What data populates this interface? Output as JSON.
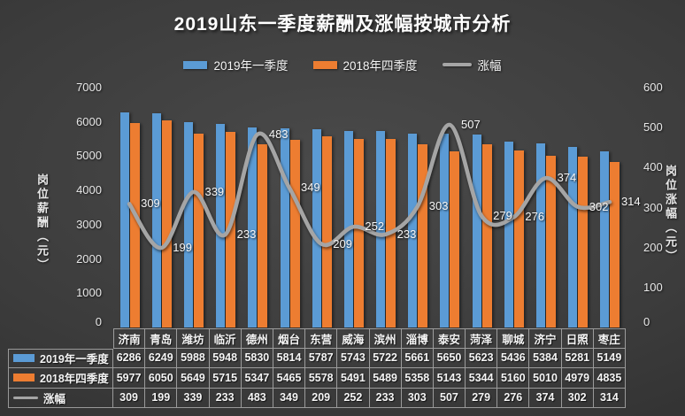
{
  "chart_data": {
    "type": "combo",
    "title": "2019山东一季度薪酬及涨幅按城市分析",
    "categories": [
      "济南",
      "青岛",
      "潍坊",
      "临沂",
      "德州",
      "烟台",
      "东营",
      "威海",
      "滨州",
      "淄博",
      "泰安",
      "菏泽",
      "聊城",
      "济宁",
      "日照",
      "枣庄"
    ],
    "series": [
      {
        "name": "2019年一季度",
        "type": "bar",
        "axis": "left",
        "color": "#5B9BD5",
        "values": [
          6286,
          6249,
          5988,
          5948,
          5830,
          5814,
          5787,
          5743,
          5722,
          5661,
          5650,
          5623,
          5436,
          5384,
          5281,
          5149
        ]
      },
      {
        "name": "2018年四季度",
        "type": "bar",
        "axis": "left",
        "color": "#ED7D31",
        "values": [
          5977,
          6050,
          5649,
          5715,
          5347,
          5465,
          5578,
          5491,
          5489,
          5358,
          5143,
          5344,
          5160,
          5010,
          4979,
          4835
        ]
      },
      {
        "name": "涨幅",
        "type": "line",
        "axis": "right",
        "color": "#A5A5A5",
        "values": [
          309,
          199,
          339,
          233,
          483,
          349,
          209,
          252,
          233,
          303,
          507,
          279,
          276,
          374,
          302,
          314
        ]
      }
    ],
    "y_axis_left": {
      "title": "岗位薪酬（元）",
      "min": 0,
      "max": 7000,
      "ticks": [
        0,
        1000,
        2000,
        3000,
        4000,
        5000,
        6000,
        7000
      ]
    },
    "y_axis_right": {
      "title": "岗位涨幅（元）",
      "min": 0,
      "max": 600,
      "ticks": [
        0,
        100,
        200,
        300,
        400,
        500,
        600
      ]
    },
    "legend_position": "top",
    "grid": false,
    "data_table": true,
    "line_labels_shown": true,
    "background_color": "#3c3c3c",
    "text_color": "#f2f2f2"
  }
}
